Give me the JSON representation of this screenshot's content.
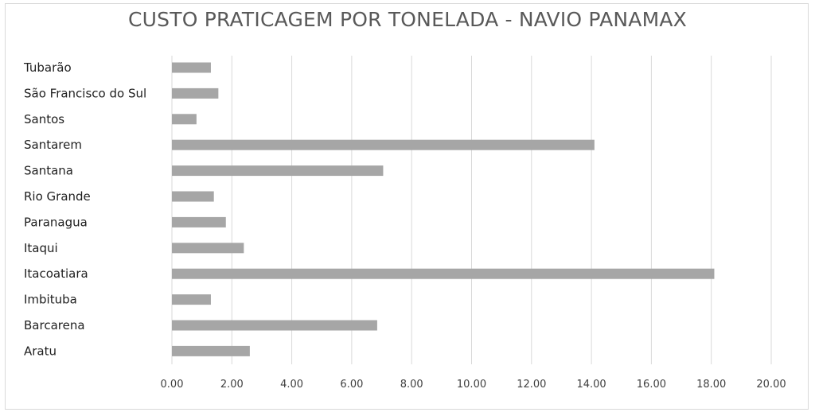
{
  "chart_data": {
    "type": "bar",
    "orientation": "horizontal",
    "title": "CUSTO PRATICAGEM POR TONELADA - NAVIO PANAMAX",
    "xlabel": "",
    "ylabel": "",
    "categories": [
      "Tubarão",
      "São Francisco do Sul",
      "Santos",
      "Santarem",
      "Santana",
      "Rio Grande",
      "Paranagua",
      "Itaqui",
      "Itacoatiara",
      "Imbituba",
      "Barcarena",
      "Aratu"
    ],
    "values": [
      1.3,
      1.55,
      0.82,
      14.1,
      7.05,
      1.4,
      1.8,
      2.4,
      18.1,
      1.3,
      6.85,
      2.6
    ],
    "xlim": [
      0,
      20
    ],
    "x_ticks": [
      "0.00",
      "2.00",
      "4.00",
      "6.00",
      "8.00",
      "10.00",
      "12.00",
      "14.00",
      "16.00",
      "18.00",
      "20.00"
    ],
    "grid": true,
    "legend": "none",
    "bar_color": "#a6a6a6",
    "grid_color": "#d9d9d9"
  }
}
